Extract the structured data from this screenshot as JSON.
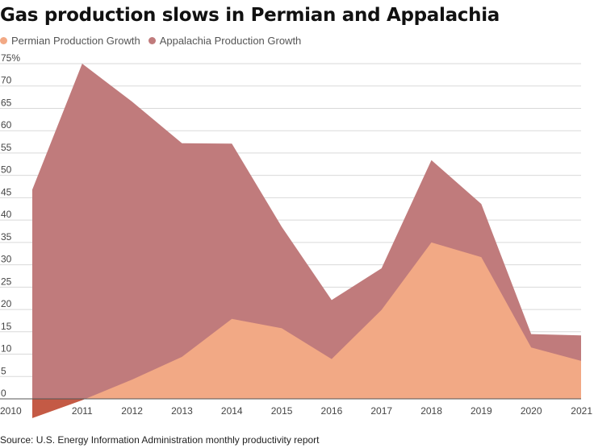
{
  "chart_data": {
    "type": "area",
    "title": "Gas production slows in Permian and Appalachia",
    "x": [
      "2010",
      "2011",
      "2012",
      "2013",
      "2014",
      "2015",
      "2016",
      "2017",
      "2018",
      "2019",
      "2020",
      "2021"
    ],
    "series": [
      {
        "name": "Permian Production Growth",
        "color": "#f2a985",
        "values": [
          -4.3,
          -0.3,
          4.3,
          9.4,
          17.9,
          15.8,
          8.9,
          19.9,
          35.0,
          31.7,
          11.5,
          8.5
        ]
      },
      {
        "name": "Appalachia Production Growth",
        "color": "#c07b7c",
        "values": [
          46.8,
          75.0,
          66.5,
          57.2,
          57.1,
          38.5,
          22.1,
          29.2,
          53.4,
          43.6,
          14.5,
          14.2
        ]
      }
    ],
    "negative_overlap_color": "#c45a45",
    "y_ticks": [
      "0",
      "5",
      "10",
      "15",
      "20",
      "25",
      "30",
      "35",
      "40",
      "45",
      "50",
      "55",
      "60",
      "65",
      "70",
      "75%"
    ],
    "ylim": [
      0,
      75
    ],
    "grid": true,
    "legend_position": "top-left",
    "source": "Source: U.S. Energy Information Administration monthly productivity report"
  }
}
